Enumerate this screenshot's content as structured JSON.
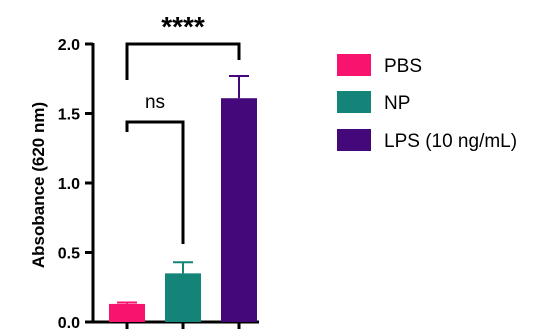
{
  "chart_data": {
    "type": "bar",
    "ylabel": "Absobance (620 nm)",
    "ylim": [
      0,
      2.0
    ],
    "yticks": [
      "0.0",
      "0.5",
      "1.0",
      "1.5",
      "2.0"
    ],
    "categories": [
      "PBS",
      "NP",
      "LPS (10 ng/mL)"
    ],
    "values": [
      0.13,
      0.35,
      1.61
    ],
    "errors": [
      0.01,
      0.08,
      0.16
    ],
    "colors": [
      "#f8136f",
      "#148378",
      "#44087b"
    ],
    "legend_position": "right",
    "significance": [
      {
        "from": 0,
        "to": 1,
        "label": "ns"
      },
      {
        "from": 0,
        "to": 2,
        "label": "****"
      }
    ]
  }
}
